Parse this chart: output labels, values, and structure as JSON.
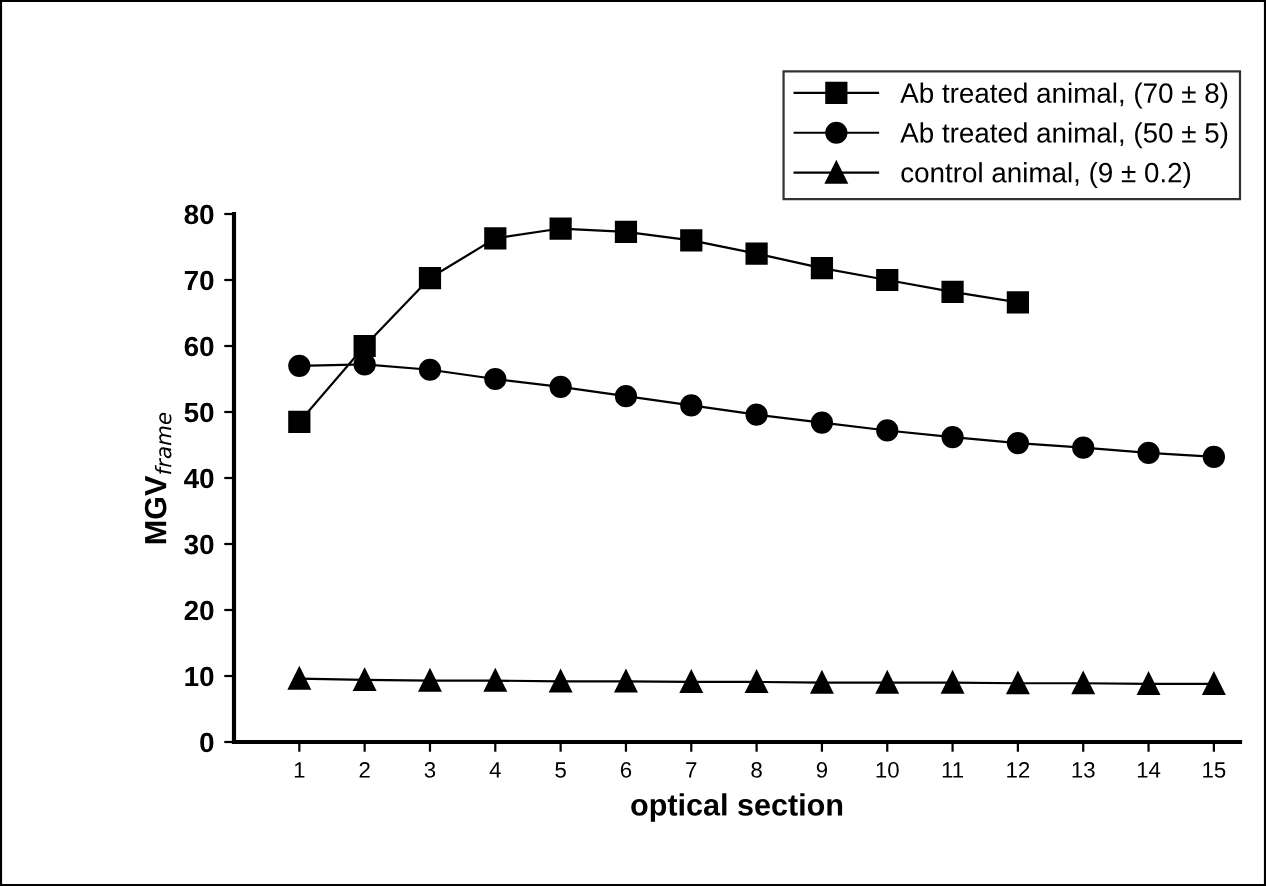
{
  "chart_data": {
    "type": "line",
    "xlabel": "optical section",
    "ylabel": "MGV$_{frame}$",
    "x": [
      1,
      2,
      3,
      4,
      5,
      6,
      7,
      8,
      9,
      10,
      11,
      12,
      13,
      14,
      15
    ],
    "xlim": [
      0,
      15.4
    ],
    "xticks": [
      1,
      2,
      3,
      4,
      5,
      6,
      7,
      8,
      9,
      10,
      11,
      12,
      13,
      14,
      15
    ],
    "ylim": [
      0,
      80
    ],
    "yticks": [
      0,
      10,
      20,
      30,
      40,
      50,
      60,
      70,
      80
    ],
    "grid": false,
    "legend": "top right",
    "line_style": "solid",
    "series": [
      {
        "name": "Ab treated animal, (70 ± 8)",
        "color": "#000000",
        "marker": "square",
        "values": [
          48.5,
          60,
          70.3,
          76.3,
          77.8,
          77.3,
          76,
          74,
          71.8,
          70,
          68.2,
          66.6,
          null,
          null,
          null
        ]
      },
      {
        "name": "Ab treated animal, (50 ± 5)",
        "color": "#000000",
        "marker": "circle",
        "values": [
          57,
          57.2,
          56.4,
          55,
          53.8,
          52.4,
          51,
          49.6,
          48.4,
          47.2,
          46.2,
          45.3,
          44.6,
          43.8,
          43.2
        ]
      },
      {
        "name": "control animal, (9 ± 0.2)",
        "color": "#000000",
        "marker": "triangle",
        "values": [
          9.6,
          9.4,
          9.3,
          9.3,
          9.2,
          9.2,
          9.1,
          9.1,
          9.0,
          9.0,
          9.0,
          8.9,
          8.9,
          8.8,
          8.8
        ]
      }
    ]
  }
}
